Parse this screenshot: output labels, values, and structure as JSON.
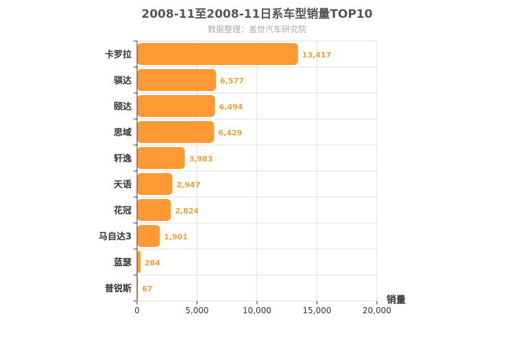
{
  "chart_data": {
    "type": "bar",
    "orientation": "horizontal",
    "title": "2008-11至2008-11日系车型销量TOP10",
    "subtitle": "数据整理：盖世汽车研究院",
    "categories": [
      "卡罗拉",
      "骐达",
      "颐达",
      "思域",
      "轩逸",
      "天语",
      "花冠",
      "马自达3",
      "蓝瑟",
      "普锐斯"
    ],
    "values": [
      13417,
      6577,
      6494,
      6429,
      3983,
      2947,
      2824,
      1901,
      284,
      67
    ],
    "value_labels": [
      "13,417",
      "6,577",
      "6,494",
      "6,429",
      "3,983",
      "2,947",
      "2,824",
      "1,901",
      "284",
      "67"
    ],
    "xlabel": "销量",
    "xlim": [
      0,
      20000
    ],
    "ticks": [
      0,
      5000,
      10000,
      15000,
      20000
    ],
    "tick_labels": [
      "0",
      "5,000",
      "10,000",
      "15,000",
      "20,000"
    ],
    "grid": true,
    "colors": {
      "bar": "#FF9933",
      "value_label": "#f0a040",
      "grid": "#dddddd",
      "axis": "#333333"
    }
  }
}
